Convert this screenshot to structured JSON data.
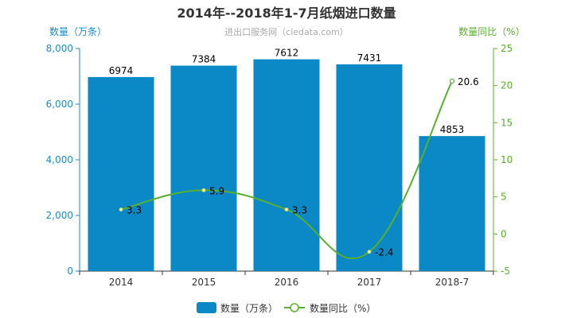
{
  "chart_data": {
    "type": "bar",
    "title": "2014年--2018年1-7月纸烟进口数量",
    "subtitle": "进出口服务网（ciedata.com）",
    "categories": [
      "2014",
      "2015",
      "2016",
      "2017",
      "2018-7"
    ],
    "series": [
      {
        "name": "数量（万条）",
        "type": "bar",
        "axis": "left",
        "values": [
          6974,
          7384,
          7612,
          7431,
          4853
        ],
        "color": "#0a89c6"
      },
      {
        "name": "数量同比（%）",
        "type": "line",
        "axis": "right",
        "values": [
          3.3,
          5.9,
          3.3,
          -2.4,
          20.6
        ],
        "color": "#5aaf2e"
      }
    ],
    "ylabel_left": "数量（万条）",
    "ylabel_right": "数量同比（%）",
    "ylim_left": [
      0,
      8000
    ],
    "yticks_left": [
      0,
      2000,
      4000,
      6000,
      8000
    ],
    "ytick_labels_left": [
      "0",
      "2,000",
      "4,000",
      "6,000",
      "8,000"
    ],
    "ylim_right": [
      -5,
      25
    ],
    "yticks_right": [
      -5,
      0,
      5,
      10,
      15,
      20,
      25
    ],
    "ytick_labels_right": [
      "-5",
      "0",
      "5",
      "10",
      "15",
      "20",
      "25"
    ],
    "grid": false,
    "legend_position": "bottom"
  }
}
